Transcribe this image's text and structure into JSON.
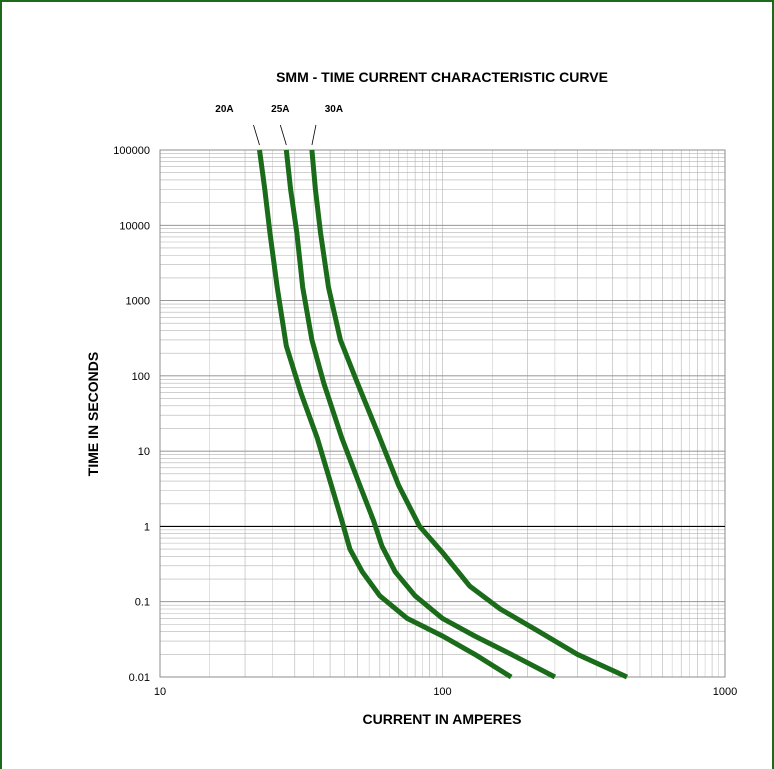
{
  "colors": {
    "frame": "#1b6b1b",
    "curve": "#1a6b1a",
    "grid": "#b3b3b3",
    "axis": "#000000"
  },
  "chart_data": {
    "type": "line",
    "title": "SMM - TIME CURRENT CHARACTERISTIC CURVE",
    "xlabel": "CURRENT IN AMPERES",
    "ylabel": "TIME IN SECONDS",
    "x_scale": "log",
    "y_scale": "log",
    "xlim": [
      10,
      1000
    ],
    "ylim": [
      0.01,
      100000
    ],
    "x_ticks": [
      10,
      100,
      1000
    ],
    "x_tick_labels": [
      "10",
      "100",
      "1000"
    ],
    "y_ticks": [
      0.01,
      0.1,
      1,
      10,
      100,
      1000,
      10000,
      100000
    ],
    "y_tick_labels": [
      "0.01",
      "0.1",
      "1",
      "10",
      "100",
      "1000",
      "10000",
      "100000"
    ],
    "grid": true,
    "reference_line_y": 1,
    "series": [
      {
        "name": "20A",
        "x": [
          22.5,
          23.5,
          24.5,
          26.0,
          28.0,
          31.5,
          36.0,
          40.0,
          44.0,
          47.0,
          52.0,
          60.0,
          75.0,
          100.0,
          130.0,
          175.0
        ],
        "y": [
          100000,
          30000,
          8000,
          1500,
          250,
          60,
          15,
          4,
          1.2,
          0.5,
          0.25,
          0.12,
          0.06,
          0.035,
          0.02,
          0.01
        ]
      },
      {
        "name": "25A",
        "x": [
          28.0,
          29.0,
          30.5,
          32.0,
          34.5,
          38.0,
          44.0,
          51.0,
          57.0,
          61.0,
          68.0,
          80.0,
          100.0,
          130.0,
          175.0,
          250.0
        ],
        "y": [
          100000,
          30000,
          8000,
          1500,
          300,
          80,
          15,
          3.5,
          1.2,
          0.55,
          0.25,
          0.12,
          0.06,
          0.035,
          0.02,
          0.01
        ]
      },
      {
        "name": "30A",
        "x": [
          34.5,
          35.5,
          37.0,
          39.5,
          43.5,
          50.0,
          60.0,
          70.0,
          83.0,
          100.0,
          125.0,
          160.0,
          220.0,
          300.0,
          450.0
        ],
        "y": [
          100000,
          30000,
          8000,
          1500,
          300,
          80,
          15,
          3.5,
          1.0,
          0.45,
          0.16,
          0.08,
          0.04,
          0.02,
          0.01
        ]
      }
    ]
  }
}
